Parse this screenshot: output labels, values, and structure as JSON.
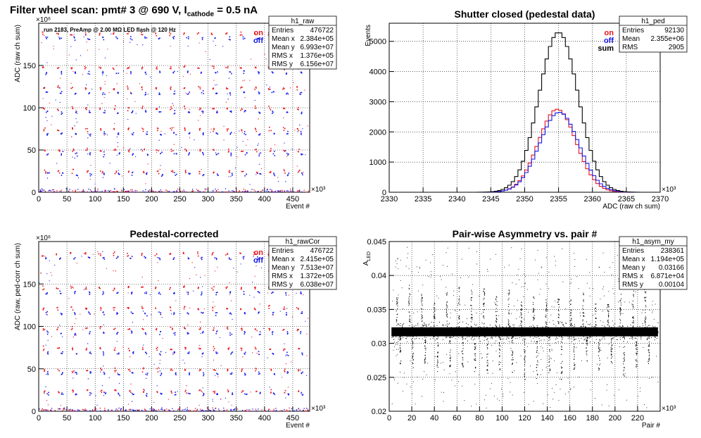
{
  "page_title": {
    "a": "Filter wheel scan: pmt#   3 @   690 V, I",
    "sub": "cathode",
    "b": " = 0.5 nA"
  },
  "colors": {
    "on": "#e8141e",
    "off": "#1416e8",
    "sum": "#000000"
  },
  "chart_data": [
    {
      "id": "raw",
      "type": "scatter",
      "title": "",
      "xlabel": "Event #",
      "ylabel": "ADC (raw ch sum)",
      "x_multiplier": "×10³",
      "y_multiplier": "×10⁶",
      "xlim": [
        0,
        480
      ],
      "ylim": [
        0,
        200
      ],
      "xticks": [
        0,
        50,
        100,
        150,
        200,
        250,
        300,
        350,
        400,
        450
      ],
      "yticks": [
        0,
        50,
        100,
        150
      ],
      "note": "run 2183, PreAmp @ 2.00 MΩ   LED flash @  120 Hz",
      "legend": [
        {
          "label": "on",
          "color": "#e8141e"
        },
        {
          "label": "off",
          "color": "#1416e8"
        }
      ],
      "legend_position": "top-right",
      "stats": {
        "name": "h1_raw",
        "rows": [
          [
            "Entries",
            "476722"
          ],
          [
            "Mean x",
            "2.384e+05"
          ],
          [
            "Mean y",
            "6.993e+07"
          ],
          [
            "RMS x",
            "1.376e+05"
          ],
          [
            "RMS y",
            "6.156e+07"
          ]
        ]
      },
      "levels": [
        {
          "on": 188,
          "off": 183
        },
        {
          "on": 148,
          "off": 142
        },
        {
          "on": 124,
          "off": 118
        },
        {
          "on": 100,
          "off": 95
        },
        {
          "on": 75,
          "off": 70
        },
        {
          "on": 50,
          "off": 46
        },
        {
          "on": 25,
          "off": 22
        }
      ],
      "step_period": 25
    },
    {
      "id": "ped",
      "type": "line",
      "title": "Shutter closed (pedestal data)",
      "xlabel": "ADC (raw ch sum)",
      "ylabel": "Events",
      "x_multiplier": "×10³",
      "xlim": [
        2330,
        2370
      ],
      "ylim": [
        0,
        5600
      ],
      "xticks": [
        2330,
        2335,
        2340,
        2345,
        2350,
        2355,
        2360,
        2365,
        2370
      ],
      "yticks": [
        0,
        1000,
        2000,
        3000,
        4000,
        5000
      ],
      "legend": [
        {
          "label": "on",
          "color": "#e8141e"
        },
        {
          "label": "off",
          "color": "#1416e8"
        },
        {
          "label": "sum",
          "color": "#000000"
        }
      ],
      "legend_position": "top-right",
      "stats": {
        "name": "h1_ped",
        "rows": [
          [
            "Entries",
            "92130"
          ],
          [
            "Mean",
            "2.355e+06"
          ],
          [
            "RMS",
            "2905"
          ]
        ]
      },
      "series": [
        {
          "name": "on",
          "peak": 2750,
          "mean": 2354.8,
          "sigma": 2.8
        },
        {
          "name": "off",
          "peak": 2650,
          "mean": 2355.1,
          "sigma": 2.9
        },
        {
          "name": "sum",
          "peak": 5300,
          "mean": 2355.0,
          "sigma": 2.9
        }
      ]
    },
    {
      "id": "rawcor",
      "type": "scatter",
      "title": "Pedestal-corrected",
      "xlabel": "Event #",
      "ylabel": "ADC (raw, ped-corr ch sum)",
      "x_multiplier": "×10³",
      "y_multiplier": "×10⁶",
      "xlim": [
        0,
        480
      ],
      "ylim": [
        0,
        200
      ],
      "xticks": [
        0,
        50,
        100,
        150,
        200,
        250,
        300,
        350,
        400,
        450
      ],
      "yticks": [
        0,
        50,
        100,
        150
      ],
      "legend": [
        {
          "label": "on",
          "color": "#e8141e"
        },
        {
          "label": "off",
          "color": "#1416e8"
        }
      ],
      "legend_position": "top-right",
      "stats": {
        "name": "h1_rawCor",
        "rows": [
          [
            "Entries",
            "476722"
          ],
          [
            "Mean x",
            "2.415e+05"
          ],
          [
            "Mean y",
            "7.513e+07"
          ],
          [
            "RMS x",
            "1.372e+05"
          ],
          [
            "RMS y",
            "6.038e+07"
          ]
        ]
      },
      "levels": [
        {
          "on": 186,
          "off": 181
        },
        {
          "on": 146,
          "off": 140
        },
        {
          "on": 122,
          "off": 116
        },
        {
          "on": 98,
          "off": 93
        },
        {
          "on": 74,
          "off": 69
        },
        {
          "on": 49,
          "off": 45
        },
        {
          "on": 24,
          "off": 21
        }
      ],
      "step_period": 25
    },
    {
      "id": "asym",
      "type": "scatter",
      "title": "Pair-wise Asymmetry vs. pair #",
      "xlabel": "Pair #",
      "ylabel": "A",
      "ylabel_sub": "LED",
      "x_multiplier": "×10³",
      "xlim": [
        0,
        240
      ],
      "ylim": [
        0.02,
        0.045
      ],
      "xticks": [
        0,
        20,
        40,
        60,
        80,
        100,
        120,
        140,
        160,
        180,
        200,
        220
      ],
      "yticks": [
        0.02,
        0.025,
        0.03,
        0.035,
        0.04,
        0.045
      ],
      "stats": {
        "name": "h1_asym_my",
        "rows": [
          [
            "Entries",
            "238361"
          ],
          [
            "Mean x",
            "1.194e+05"
          ],
          [
            "Mean y",
            "0.03166"
          ],
          [
            "RMS x",
            "6.871e+04"
          ],
          [
            "RMS y",
            "0.00104"
          ]
        ]
      },
      "band_center": 0.0317,
      "band_halfwidth": 0.0012
    }
  ]
}
